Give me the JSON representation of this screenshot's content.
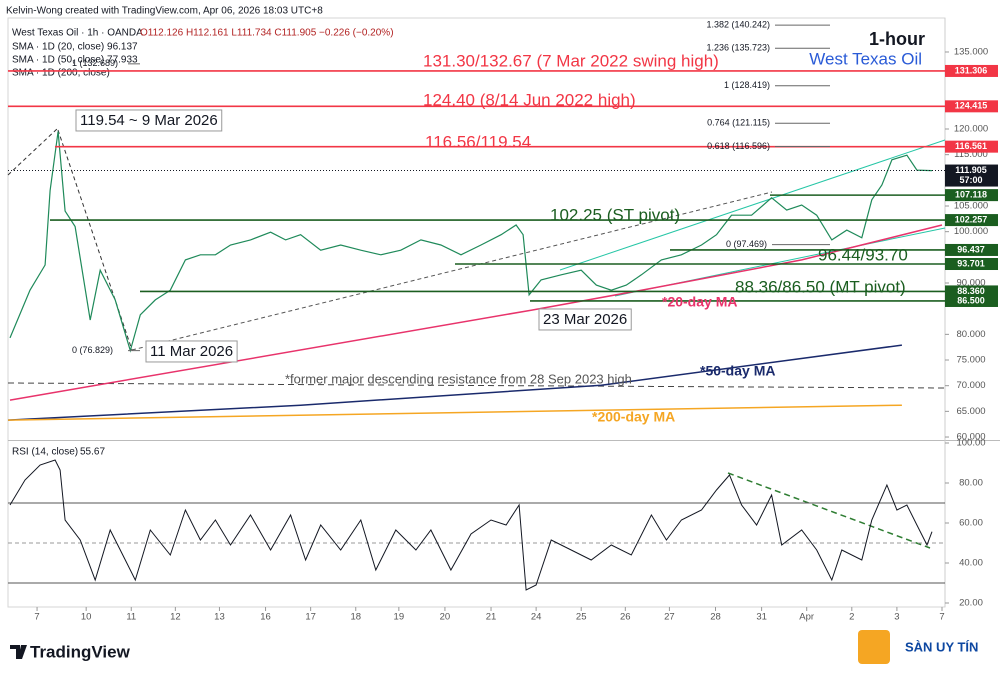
{
  "header": {
    "byline": "Kelvin-Wong created with TradingView.com, Apr 06, 2026 18:03 UTC+8",
    "symbol": "West Texas Oil · 1h · OANDA",
    "ohlc": "O112.126 H112.161 L111.734 C111.905 −0.226 (−0.20%)",
    "sma20": "SMA · 1D (20, close) 96.137",
    "sma50": "SMA · 1D (50, close) 77.933",
    "sma200": "SMA · 1D (200, close)"
  },
  "chart_data": [
    {
      "type": "line",
      "title": "1-hour",
      "subtitle": "West Texas Oil",
      "xlim": [
        0,
        187
      ],
      "ylim": [
        59.42,
        141.62
      ],
      "yticks": [
        {
          "value": 135,
          "label": "135.000"
        },
        {
          "value": 120,
          "label": "120.000"
        },
        {
          "value": 115,
          "label": "115.000"
        },
        {
          "value": 105,
          "label": "105.000"
        },
        {
          "value": 100,
          "label": "100.000"
        },
        {
          "value": 90,
          "label": "90.000"
        },
        {
          "value": 80,
          "label": "80.000"
        },
        {
          "value": 75,
          "label": "75.000"
        },
        {
          "value": 70,
          "label": "70.000"
        },
        {
          "value": 65,
          "label": "65.000"
        },
        {
          "value": 60,
          "label": "60.000"
        }
      ],
      "series": [
        {
          "color": "#1f8a5a",
          "x": [
            0.4,
            4.4,
            7.4,
            8.4,
            10,
            11.4,
            13.4,
            16.4,
            18.4,
            21.4,
            24.4,
            26.4,
            29.4,
            32.4,
            35.4,
            38.4,
            41.4,
            44.4,
            48.4,
            52.4,
            55.4,
            58.4,
            62.4,
            66.4,
            70.4,
            74.4,
            78.4,
            82.4,
            86.4,
            90.4,
            94.4,
            98.4,
            101.4,
            102.8,
            104,
            106.4,
            110.4,
            114.4,
            117.4,
            120.4,
            123.4,
            126.4,
            130.4,
            134.4,
            138.4,
            141.4,
            144.4,
            148.4,
            152.4,
            155.4,
            158.4,
            161.4,
            164.4,
            167.4,
            170.4,
            172.4,
            174.4,
            176.4,
            179.4,
            181.4,
            184.4
          ],
          "values": [
            79.3,
            88.6,
            93.5,
            108,
            119.54,
            104,
            101,
            82.8,
            92.5,
            86.7,
            76.83,
            83.8,
            86.7,
            88.6,
            94.5,
            95.5,
            95.5,
            97.4,
            98.4,
            99.9,
            98.4,
            99.4,
            96.4,
            97.4,
            96.4,
            95.5,
            96.4,
            98.4,
            97.4,
            95.5,
            97.4,
            99.4,
            101.3,
            99.4,
            87.7,
            90.6,
            91.6,
            92.5,
            89.6,
            88.6,
            89.6,
            91.6,
            94.5,
            95.5,
            97.4,
            99.4,
            103.2,
            103.2,
            106.6,
            104.2,
            105.2,
            103.2,
            98.4,
            100.3,
            98.8,
            106.2,
            109.1,
            114,
            114.9,
            112,
            111.9
          ]
        },
        {
          "name": "*20-day MA",
          "color": "#e8336b",
          "x": [
            0.4,
            104.4,
            126.4,
            158.4,
            186.4
          ],
          "values": [
            67.2,
            84.7,
            88.6,
            94.5,
            101.3
          ]
        },
        {
          "name": "*50-day MA",
          "color": "#1a2a6c",
          "x": [
            0,
            58.4,
            118.4,
            178.4
          ],
          "values": [
            63.3,
            66.2,
            70.1,
            77.9
          ]
        },
        {
          "name": "*200-day MA",
          "color": "#f5a623",
          "x": [
            0,
            178.4
          ],
          "values": [
            63.3,
            66.2
          ]
        }
      ],
      "last": {
        "value": 111.905,
        "countdown": "57:00"
      },
      "levels": [
        {
          "value": 131.306,
          "color": "#f23645"
        },
        {
          "value": 124.415,
          "color": "#f23645"
        },
        {
          "value": 116.561,
          "color": "#f23645"
        },
        {
          "value": 107.118,
          "color": "#1b5e20"
        },
        {
          "value": 102.257,
          "color": "#1b5e20"
        },
        {
          "value": 96.437,
          "color": "#1b5e20"
        },
        {
          "value": 93.701,
          "color": "#1b5e20"
        },
        {
          "value": 88.36,
          "label": "88.360",
          "color": "#1b5e20"
        },
        {
          "value": 86.5,
          "label": "86.500",
          "color": "#1b5e20"
        }
      ],
      "fib": [
        {
          "value": 140.242,
          "label": "1.382 (140.242)"
        },
        {
          "value": 135.723,
          "label": "1.236 (135.723)"
        },
        {
          "value": 128.419,
          "label": "1 (128.419)"
        },
        {
          "value": 121.115,
          "label": "0.764 (121.115)"
        },
        {
          "value": 116.596,
          "label": "0.618 (116.596)"
        },
        {
          "value": 97.469,
          "label": "0 (97.469)"
        }
      ],
      "fib_left": [
        {
          "value": 132.689,
          "label": "1 (132.689)"
        },
        {
          "value": 76.829,
          "label": "0 (76.829)"
        }
      ],
      "annotations": [
        "131.30/132.67 (7 Mar 2022 swing high)",
        "124.40 (8/14 Jun 2022 high)",
        "116.56/119.54",
        "119.54 ~ 9 Mar 2026",
        "11 Mar 2026",
        "23 Mar 2026",
        "102.25 (ST pivot)",
        "96.44/93.70",
        "88.36/86.50 (MT pivot)",
        "*former major descending resistance from 28 Sep 2023 high"
      ]
    },
    {
      "type": "line",
      "title": "RSI (14, close)",
      "last_value": 55.67,
      "color": "#131722",
      "xlim": [
        0,
        187
      ],
      "ylim": [
        18,
        101
      ],
      "yticks": [
        {
          "value": 100,
          "label": "100.00"
        },
        {
          "value": 80,
          "label": "80.00"
        },
        {
          "value": 60,
          "label": "60.00"
        },
        {
          "value": 40,
          "label": "40.00"
        },
        {
          "value": 20,
          "label": "20.00"
        }
      ],
      "levels": [
        70,
        30
      ],
      "midline": 50,
      "xticks": [
        {
          "value": 5.8,
          "label": "7"
        },
        {
          "value": 15.6,
          "label": "10"
        },
        {
          "value": 24.6,
          "label": "11"
        },
        {
          "value": 33.4,
          "label": "12"
        },
        {
          "value": 42.2,
          "label": "13"
        },
        {
          "value": 51.4,
          "label": "16"
        },
        {
          "value": 60.4,
          "label": "17"
        },
        {
          "value": 69.4,
          "label": "18"
        },
        {
          "value": 78,
          "label": "19"
        },
        {
          "value": 87.2,
          "label": "20"
        },
        {
          "value": 96.4,
          "label": "21"
        },
        {
          "value": 105.4,
          "label": "24"
        },
        {
          "value": 114.4,
          "label": "25"
        },
        {
          "value": 123.2,
          "label": "26"
        },
        {
          "value": 132,
          "label": "27"
        },
        {
          "value": 141.2,
          "label": "28"
        },
        {
          "value": 150.4,
          "label": "31"
        },
        {
          "value": 159.4,
          "label": "Apr"
        },
        {
          "value": 168.4,
          "label": "2"
        },
        {
          "value": 177.4,
          "label": "3"
        },
        {
          "value": 186.4,
          "label": "7"
        }
      ],
      "x": [
        0.4,
        3.4,
        6.4,
        9.4,
        10.4,
        11.4,
        14.4,
        17.4,
        20.4,
        23.4,
        25.4,
        28.4,
        32.4,
        35.4,
        38.4,
        41.4,
        44.4,
        48.4,
        52.4,
        56.4,
        59.4,
        62.4,
        66.4,
        70.4,
        73.4,
        77.4,
        81.4,
        84.4,
        88.4,
        92.4,
        96.4,
        99.4,
        102,
        103.4,
        105.4,
        108.4,
        112.4,
        116.4,
        120.4,
        124.4,
        128.4,
        131.4,
        134.4,
        138.4,
        141.4,
        144,
        146.4,
        149.4,
        152.4,
        154.4,
        158.4,
        161.4,
        164.4,
        166.4,
        170.4,
        172.4,
        175.4,
        177.4,
        179.4,
        181.4,
        183.4,
        184.4
      ],
      "values": [
        69,
        81.5,
        89,
        91.5,
        86.5,
        61.5,
        51.5,
        31.5,
        56.5,
        41.5,
        31.5,
        56.5,
        44,
        66.5,
        51.5,
        61.5,
        49,
        64,
        46.5,
        64,
        41.5,
        59,
        46.5,
        61.5,
        36.5,
        56.5,
        46.5,
        56.5,
        36.5,
        54.5,
        61.5,
        59,
        69,
        26.5,
        29,
        51.5,
        46.5,
        41.5,
        49,
        44,
        64,
        51.5,
        61.5,
        66.5,
        76.5,
        84,
        69,
        59,
        74,
        49,
        56.5,
        46.5,
        31.5,
        46.5,
        41.5,
        61.5,
        79,
        66.5,
        69,
        59,
        49,
        55.67
      ]
    }
  ],
  "footer": {
    "brand": "TradingView",
    "partner": "SÀN UY TÍN"
  }
}
